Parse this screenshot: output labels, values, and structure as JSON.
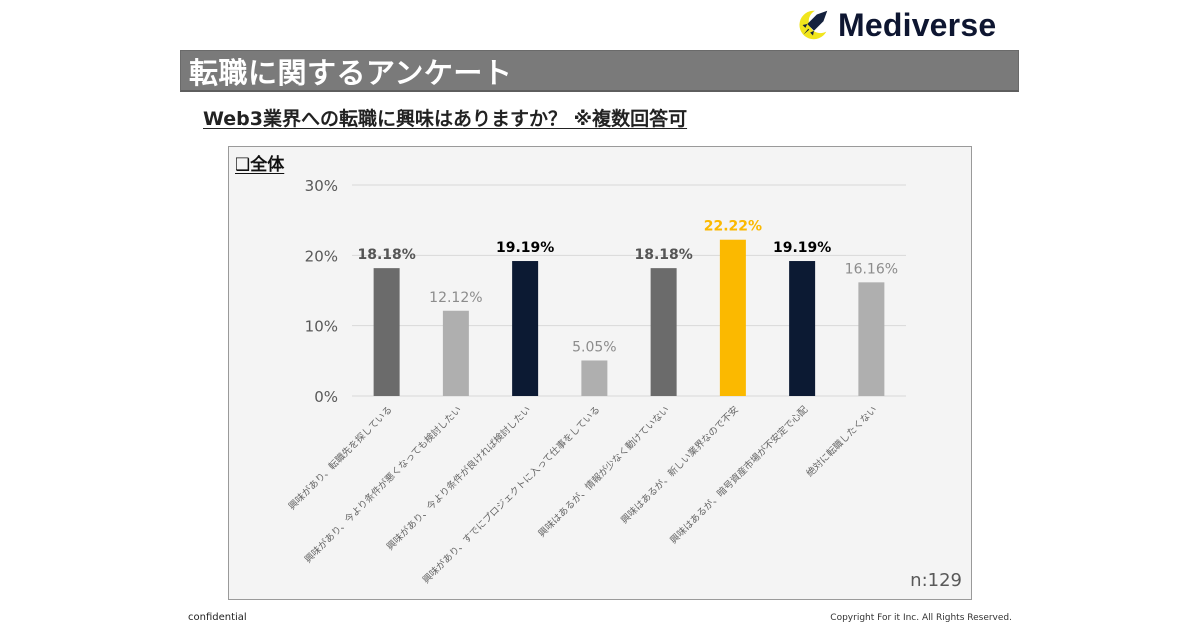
{
  "header": {
    "brand": "Mediverse",
    "logo_icon": "rocket-moon-icon"
  },
  "title": "転職に関するアンケート",
  "question": "Web3業界への転職に興味はありますか？ ※複数回答可",
  "section_label": "❑全体",
  "sample_size": "n:129",
  "footer": {
    "left": "confidential",
    "right": "Copyright For it Inc. All Rights Reserved."
  },
  "colors": {
    "dark_gray": "#6b6b6b",
    "light_gray": "#afafaf",
    "navy": "#0c1a33",
    "gold": "#fbb900"
  },
  "chart_data": {
    "type": "bar",
    "title": "",
    "xlabel": "",
    "ylabel": "",
    "ylim": [
      0,
      30
    ],
    "yticks": [
      "0%",
      "10%",
      "20%",
      "30%"
    ],
    "ytick_values": [
      0,
      10,
      20,
      30
    ],
    "grid": true,
    "legend": "none",
    "categories": [
      "興味があり、転職先を探している",
      "興味があり、今より条件が悪くなっても検討したい",
      "興味があり、今より条件が良ければ検討したい",
      "興味があり、すでにプロジェクトに入って仕事をしている",
      "興味はあるが、情報が少なく動けていない",
      "興味はあるが、新しい業界なので不安",
      "興味はあるが、暗号資産市場が不安定で心配",
      "絶対に転職したくない"
    ],
    "values": [
      18.18,
      12.12,
      19.19,
      5.05,
      18.18,
      22.22,
      19.19,
      16.16
    ],
    "labels": [
      "18.18%",
      "12.12%",
      "19.19%",
      "5.05%",
      "18.18%",
      "22.22%",
      "19.19%",
      "16.16%"
    ],
    "bar_colors": [
      "#6b6b6b",
      "#afafaf",
      "#0c1a33",
      "#afafaf",
      "#6b6b6b",
      "#fbb900",
      "#0c1a33",
      "#afafaf"
    ],
    "label_colors": [
      "#555555",
      "#8c8c8c",
      "#000000",
      "#8c8c8c",
      "#555555",
      "#fbb900",
      "#000000",
      "#8c8c8c"
    ],
    "label_bold": [
      true,
      false,
      true,
      false,
      true,
      true,
      true,
      false
    ]
  }
}
